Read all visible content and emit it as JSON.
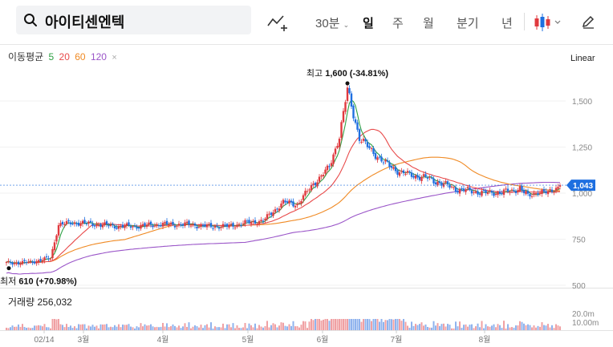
{
  "search": {
    "query": "아이티센엔텍"
  },
  "periods": [
    {
      "label": "30분",
      "has_dropdown": true
    },
    {
      "label": "일",
      "active": true
    },
    {
      "label": "주"
    },
    {
      "label": "월"
    },
    {
      "label": "분기"
    },
    {
      "label": "년"
    }
  ],
  "icons": {
    "search": "search-icon",
    "indicator": "indicator-add-icon",
    "candle": "candle-type-icon",
    "pencil": "pencil-icon",
    "close": "close-icon"
  },
  "colors": {
    "up": "#e0393e",
    "down": "#1e6fe0",
    "ma5": "#2ea043",
    "ma20": "#e84a4a",
    "ma60": "#f08a24",
    "ma120": "#9a55c8",
    "price_tag": "#1e6fe0"
  },
  "ma_legend": {
    "title": "이동평균",
    "p5": "5",
    "p20": "20",
    "p60": "60",
    "p120": "120"
  },
  "scale_label": "Linear",
  "current_price": "1,043",
  "annotations": {
    "high": {
      "label": "최고",
      "value": "1,600",
      "pct": "(-34.81%)"
    },
    "low": {
      "label": "최저",
      "value": "610",
      "pct": "(+70.98%)"
    }
  },
  "volume": {
    "label": "거래량",
    "value": "256,032",
    "ticks": [
      "20.0m",
      "10.00m"
    ]
  },
  "chart_data": {
    "type": "candlestick",
    "y_ticks": [
      "1,500",
      "1,250",
      "1,000",
      "750",
      "500"
    ],
    "y_range": [
      500,
      1700
    ],
    "x_labels": [
      "02/14",
      "3월",
      "4월",
      "5월",
      "6월",
      "7월",
      "8월"
    ],
    "high": 1600,
    "low": 610,
    "last": 1043,
    "series": [
      {
        "name": "MA5"
      },
      {
        "name": "MA20"
      },
      {
        "name": "MA60"
      },
      {
        "name": "MA120"
      }
    ]
  }
}
